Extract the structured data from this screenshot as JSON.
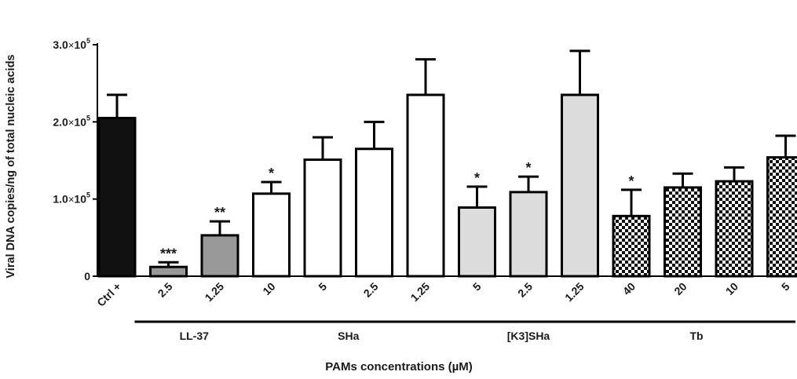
{
  "chart_data": {
    "type": "bar",
    "ylabel": "Viral DNA copies/ng of total nucleic acids",
    "xlabel": "PAMs concentrations (µM)",
    "ylim": [
      0,
      300000
    ],
    "y_ticks": [
      {
        "value": 0,
        "mantissa": "0",
        "times": "",
        "base": "",
        "exp": ""
      },
      {
        "value": 100000,
        "mantissa": "1.0",
        "times": "×",
        "base": "10",
        "exp": "5"
      },
      {
        "value": 200000,
        "mantissa": "2.0",
        "times": "×",
        "base": "10",
        "exp": "5"
      },
      {
        "value": 300000,
        "mantissa": "3.0",
        "times": "×",
        "base": "10",
        "exp": "5"
      }
    ],
    "categories": [
      "Ctrl +",
      "2.5",
      "1.25",
      "10",
      "5",
      "2.5",
      "1.25",
      "5",
      "2.5",
      "1.25",
      "40",
      "20",
      "10",
      "5"
    ],
    "values": [
      205000,
      12000,
      53000,
      107000,
      151000,
      165000,
      235000,
      89000,
      109000,
      235000,
      78000,
      115000,
      123000,
      154000
    ],
    "errors": [
      30000,
      6000,
      18000,
      15000,
      29000,
      35000,
      46000,
      27000,
      20000,
      57000,
      34000,
      18000,
      18000,
      28000
    ],
    "significance": [
      "",
      "***",
      "**",
      "*",
      "",
      "",
      "",
      "*",
      "*",
      "",
      "*",
      "",
      "",
      ""
    ],
    "fill_styles": [
      "black",
      "gray",
      "gray",
      "white",
      "white",
      "white",
      "white",
      "lightgray",
      "lightgray",
      "lightgray",
      "checker",
      "checker",
      "checker",
      "checker"
    ],
    "colors": {
      "black": "#111111",
      "gray": "#999999",
      "white": "#ffffff",
      "lightgray": "#dcdcdc",
      "axis": "#000000"
    },
    "groups": [
      {
        "label": "LL-37",
        "from": 1,
        "to": 2
      },
      {
        "label": "SHa",
        "from": 3,
        "to": 6
      },
      {
        "label": "[K3]SHa",
        "from": 7,
        "to": 9
      },
      {
        "label": "Tb",
        "from": 10,
        "to": 13
      }
    ],
    "grid": false,
    "legend": "none"
  }
}
